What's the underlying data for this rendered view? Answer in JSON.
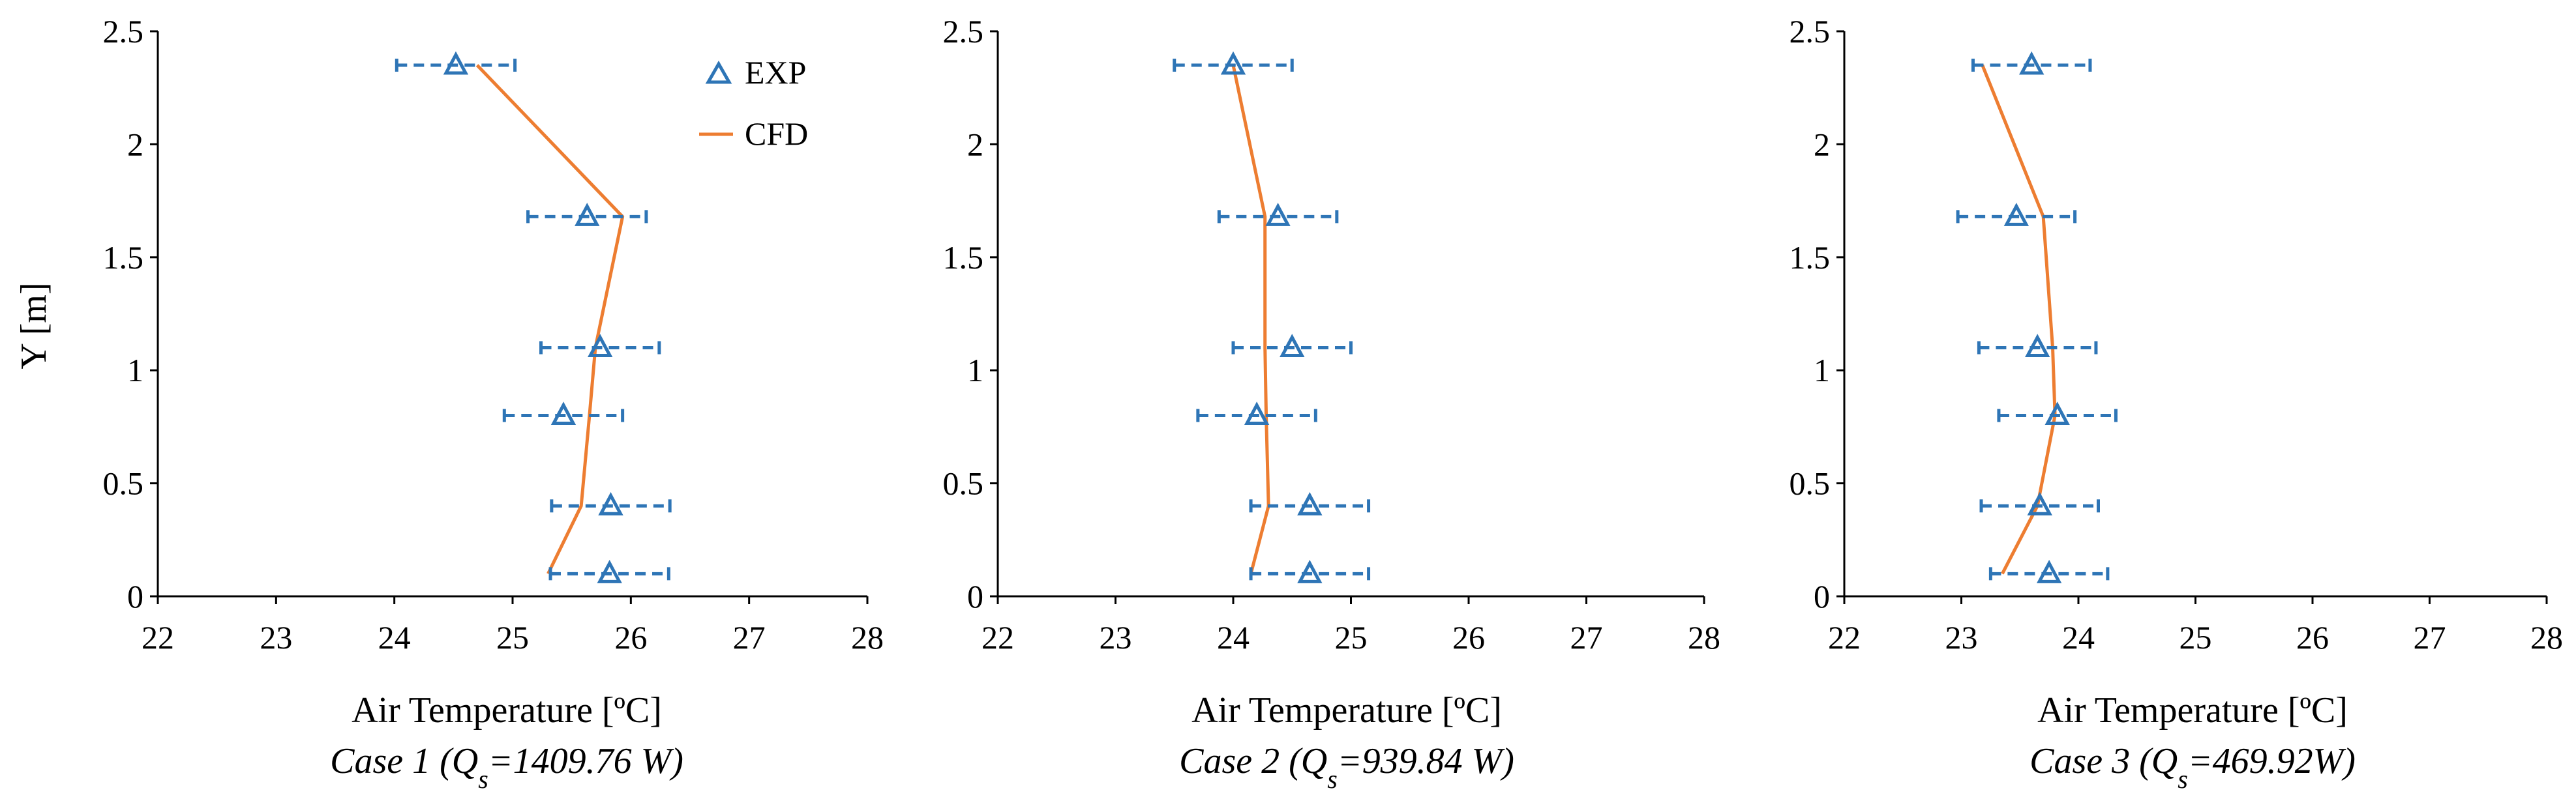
{
  "colors": {
    "exp": "#2E75B6",
    "cfd": "#ED7D31",
    "axis": "#000000"
  },
  "legend": {
    "exp_label": "EXP",
    "cfd_label": "CFD",
    "placement": "top-right of first panel"
  },
  "chart_data": [
    {
      "type": "line",
      "caption_prefix": "Case 1 (Q",
      "caption_sub": "s",
      "caption_suffix": "=1409.76 W)",
      "xlabel": "Air Temperature [ºC]",
      "ylabel": "Y [m]",
      "xlim": [
        22,
        28
      ],
      "ylim": [
        0,
        2.5
      ],
      "xticks": [
        22,
        23,
        24,
        25,
        26,
        27,
        28
      ],
      "yticks": [
        0,
        0.5,
        1,
        1.5,
        2,
        2.5
      ],
      "ytick_labels": [
        "0",
        "0.5",
        "1",
        "1.5",
        "2",
        "2.5"
      ],
      "series": [
        {
          "name": "EXP",
          "kind": "scatter-errorbar",
          "y": [
            0.1,
            0.4,
            0.8,
            1.1,
            1.68,
            2.35
          ],
          "x": [
            25.82,
            25.83,
            25.43,
            25.74,
            25.63,
            24.52
          ],
          "xerr": 0.5
        },
        {
          "name": "CFD",
          "kind": "line",
          "y": [
            0.1,
            0.4,
            0.8,
            1.1,
            1.68,
            2.35
          ],
          "x": [
            25.3,
            25.58,
            25.65,
            25.7,
            25.93,
            24.7
          ]
        }
      ]
    },
    {
      "type": "line",
      "caption_prefix": "Case 2 (Q",
      "caption_sub": "s",
      "caption_suffix": "=939.84 W)",
      "xlabel": "Air Temperature [ºC]",
      "ylabel": "",
      "xlim": [
        22,
        28
      ],
      "ylim": [
        0,
        2.5
      ],
      "xticks": [
        22,
        23,
        24,
        25,
        26,
        27,
        28
      ],
      "yticks": [
        0,
        0.5,
        1,
        1.5,
        2,
        2.5
      ],
      "ytick_labels": [
        "0",
        "0.5",
        "1",
        "1.5",
        "2",
        "2.5"
      ],
      "series": [
        {
          "name": "EXP",
          "kind": "scatter-errorbar",
          "y": [
            0.1,
            0.4,
            0.8,
            1.1,
            1.68,
            2.35
          ],
          "x": [
            24.65,
            24.65,
            24.2,
            24.5,
            24.38,
            24.0
          ],
          "xerr": 0.5
        },
        {
          "name": "CFD",
          "kind": "line",
          "y": [
            0.1,
            0.4,
            0.8,
            1.1,
            1.68,
            2.35
          ],
          "x": [
            24.15,
            24.3,
            24.28,
            24.27,
            24.27,
            24.0
          ]
        }
      ]
    },
    {
      "type": "line",
      "caption_prefix": "Case 3 (Q",
      "caption_sub": "s",
      "caption_suffix": "=469.92W)",
      "xlabel": "Air Temperature [ºC]",
      "ylabel": "",
      "xlim": [
        22,
        28
      ],
      "ylim": [
        0,
        2.5
      ],
      "xticks": [
        22,
        23,
        24,
        25,
        26,
        27,
        28
      ],
      "yticks": [
        0,
        0.5,
        1,
        1.5,
        2,
        2.5
      ],
      "ytick_labels": [
        "0",
        "0.5",
        "1",
        "1.5",
        "2",
        "2.5"
      ],
      "series": [
        {
          "name": "EXP",
          "kind": "scatter-errorbar",
          "y": [
            0.1,
            0.4,
            0.8,
            1.1,
            1.68,
            2.35
          ],
          "x": [
            23.75,
            23.67,
            23.82,
            23.65,
            23.47,
            23.6
          ],
          "xerr": 0.5
        },
        {
          "name": "CFD",
          "kind": "line",
          "y": [
            0.1,
            0.4,
            0.8,
            1.1,
            1.68,
            2.35
          ],
          "x": [
            23.35,
            23.65,
            23.8,
            23.78,
            23.7,
            23.18
          ]
        }
      ]
    }
  ]
}
